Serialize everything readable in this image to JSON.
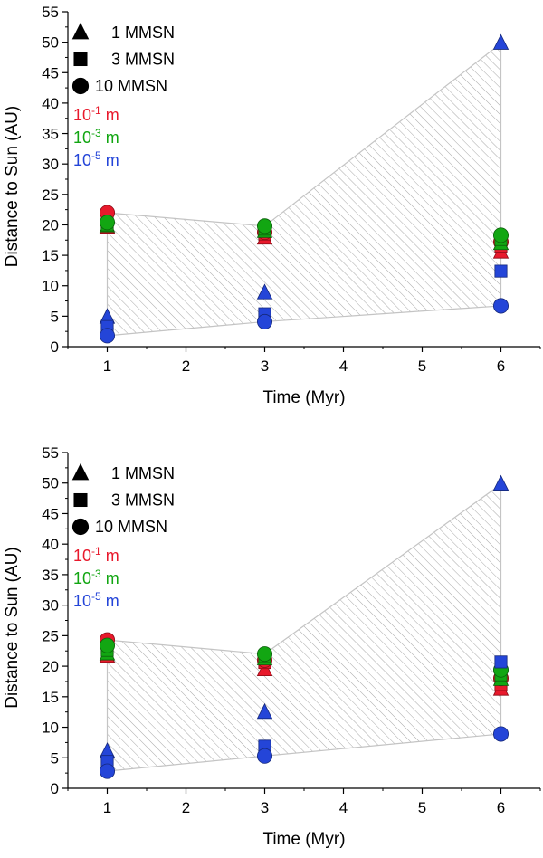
{
  "chart_data": [
    {
      "type": "scatter",
      "title": "",
      "xlabel": "Time (Myr)",
      "ylabel": "Distance to Sun (AU)",
      "xlim": [
        0.5,
        6.5
      ],
      "ylim": [
        0,
        55
      ],
      "xticks": [
        1,
        2,
        3,
        4,
        5,
        6
      ],
      "yticks": [
        0,
        5,
        10,
        15,
        20,
        25,
        30,
        35,
        40,
        45,
        50,
        55
      ],
      "legend_markers": [
        {
          "marker": "triangle",
          "label": "1 MMSN"
        },
        {
          "marker": "square",
          "label": "3 MMSN"
        },
        {
          "marker": "circle",
          "label": "10 MMSN"
        }
      ],
      "legend_colors": [
        {
          "color": "#e8192c",
          "base": "10",
          "exp": "-1",
          "unit": "m"
        },
        {
          "color": "#12a612",
          "base": "10",
          "exp": "-3",
          "unit": "m"
        },
        {
          "color": "#2445d8",
          "base": "10",
          "exp": "-5",
          "unit": "m"
        }
      ],
      "envelope": [
        [
          1,
          22.0
        ],
        [
          3,
          19.8
        ],
        [
          6,
          49.8
        ],
        [
          6,
          6.7
        ],
        [
          3,
          4.1
        ],
        [
          1,
          1.8
        ]
      ],
      "points": [
        {
          "x": 1,
          "y": 19.6,
          "marker": "triangle",
          "color": "#e8192c"
        },
        {
          "x": 1,
          "y": 20.2,
          "marker": "square",
          "color": "#e8192c"
        },
        {
          "x": 1,
          "y": 22.0,
          "marker": "circle",
          "color": "#e8192c"
        },
        {
          "x": 1,
          "y": 19.8,
          "marker": "triangle",
          "color": "#12a612"
        },
        {
          "x": 1,
          "y": 20.0,
          "marker": "square",
          "color": "#12a612"
        },
        {
          "x": 1,
          "y": 20.4,
          "marker": "circle",
          "color": "#12a612"
        },
        {
          "x": 1,
          "y": 4.8,
          "marker": "triangle",
          "color": "#2445d8"
        },
        {
          "x": 1,
          "y": 3.3,
          "marker": "square",
          "color": "#2445d8"
        },
        {
          "x": 1,
          "y": 1.8,
          "marker": "circle",
          "color": "#2445d8"
        },
        {
          "x": 3,
          "y": 17.8,
          "marker": "triangle",
          "color": "#e8192c"
        },
        {
          "x": 3,
          "y": 18.5,
          "marker": "square",
          "color": "#e8192c"
        },
        {
          "x": 3,
          "y": 18.8,
          "marker": "circle",
          "color": "#e8192c"
        },
        {
          "x": 3,
          "y": 18.9,
          "marker": "triangle",
          "color": "#12a612"
        },
        {
          "x": 3,
          "y": 19.3,
          "marker": "square",
          "color": "#12a612"
        },
        {
          "x": 3,
          "y": 19.8,
          "marker": "circle",
          "color": "#12a612"
        },
        {
          "x": 3,
          "y": 8.8,
          "marker": "triangle",
          "color": "#2445d8"
        },
        {
          "x": 3,
          "y": 5.4,
          "marker": "square",
          "color": "#2445d8"
        },
        {
          "x": 3,
          "y": 4.1,
          "marker": "circle",
          "color": "#2445d8"
        },
        {
          "x": 6,
          "y": 15.5,
          "marker": "triangle",
          "color": "#e8192c"
        },
        {
          "x": 6,
          "y": 16.5,
          "marker": "square",
          "color": "#e8192c"
        },
        {
          "x": 6,
          "y": 17.2,
          "marker": "circle",
          "color": "#e8192c"
        },
        {
          "x": 6,
          "y": 16.9,
          "marker": "triangle",
          "color": "#12a612"
        },
        {
          "x": 6,
          "y": 17.6,
          "marker": "square",
          "color": "#12a612"
        },
        {
          "x": 6,
          "y": 18.3,
          "marker": "circle",
          "color": "#12a612"
        },
        {
          "x": 6,
          "y": 49.8,
          "marker": "triangle",
          "color": "#2445d8"
        },
        {
          "x": 6,
          "y": 12.4,
          "marker": "square",
          "color": "#2445d8"
        },
        {
          "x": 6,
          "y": 6.7,
          "marker": "circle",
          "color": "#2445d8"
        }
      ]
    },
    {
      "type": "scatter",
      "title": "",
      "xlabel": "Time (Myr)",
      "ylabel": "Distance to Sun (AU)",
      "xlim": [
        0.5,
        6.5
      ],
      "ylim": [
        0,
        55
      ],
      "xticks": [
        1,
        2,
        3,
        4,
        5,
        6
      ],
      "yticks": [
        0,
        5,
        10,
        15,
        20,
        25,
        30,
        35,
        40,
        45,
        50,
        55
      ],
      "legend_markers": [
        {
          "marker": "triangle",
          "label": "1 MMSN"
        },
        {
          "marker": "square",
          "label": "3 MMSN"
        },
        {
          "marker": "circle",
          "label": "10 MMSN"
        }
      ],
      "legend_colors": [
        {
          "color": "#e8192c",
          "base": "10",
          "exp": "-1",
          "unit": "m"
        },
        {
          "color": "#12a612",
          "base": "10",
          "exp": "-3",
          "unit": "m"
        },
        {
          "color": "#2445d8",
          "base": "10",
          "exp": "-5",
          "unit": "m"
        }
      ],
      "envelope": [
        [
          1,
          24.3
        ],
        [
          3,
          22.0
        ],
        [
          6,
          49.8
        ],
        [
          6,
          8.9
        ],
        [
          3,
          5.3
        ],
        [
          1,
          2.8
        ]
      ],
      "points": [
        {
          "x": 1,
          "y": 21.6,
          "marker": "triangle",
          "color": "#e8192c"
        },
        {
          "x": 1,
          "y": 23.0,
          "marker": "square",
          "color": "#e8192c"
        },
        {
          "x": 1,
          "y": 24.3,
          "marker": "circle",
          "color": "#e8192c"
        },
        {
          "x": 1,
          "y": 22.0,
          "marker": "triangle",
          "color": "#12a612"
        },
        {
          "x": 1,
          "y": 22.6,
          "marker": "square",
          "color": "#12a612"
        },
        {
          "x": 1,
          "y": 23.4,
          "marker": "circle",
          "color": "#12a612"
        },
        {
          "x": 1,
          "y": 6.0,
          "marker": "triangle",
          "color": "#2445d8"
        },
        {
          "x": 1,
          "y": 4.4,
          "marker": "square",
          "color": "#2445d8"
        },
        {
          "x": 1,
          "y": 2.8,
          "marker": "circle",
          "color": "#2445d8"
        },
        {
          "x": 3,
          "y": 19.4,
          "marker": "triangle",
          "color": "#e8192c"
        },
        {
          "x": 3,
          "y": 20.6,
          "marker": "square",
          "color": "#e8192c"
        },
        {
          "x": 3,
          "y": 21.0,
          "marker": "circle",
          "color": "#e8192c"
        },
        {
          "x": 3,
          "y": 21.2,
          "marker": "triangle",
          "color": "#12a612"
        },
        {
          "x": 3,
          "y": 21.6,
          "marker": "square",
          "color": "#12a612"
        },
        {
          "x": 3,
          "y": 22.0,
          "marker": "circle",
          "color": "#12a612"
        },
        {
          "x": 3,
          "y": 12.4,
          "marker": "triangle",
          "color": "#2445d8"
        },
        {
          "x": 3,
          "y": 6.9,
          "marker": "square",
          "color": "#2445d8"
        },
        {
          "x": 3,
          "y": 5.3,
          "marker": "circle",
          "color": "#2445d8"
        },
        {
          "x": 6,
          "y": 16.2,
          "marker": "triangle",
          "color": "#e8192c"
        },
        {
          "x": 6,
          "y": 17.0,
          "marker": "square",
          "color": "#e8192c"
        },
        {
          "x": 6,
          "y": 18.0,
          "marker": "circle",
          "color": "#e8192c"
        },
        {
          "x": 6,
          "y": 17.8,
          "marker": "triangle",
          "color": "#12a612"
        },
        {
          "x": 6,
          "y": 18.6,
          "marker": "square",
          "color": "#12a612"
        },
        {
          "x": 6,
          "y": 19.4,
          "marker": "circle",
          "color": "#12a612"
        },
        {
          "x": 6,
          "y": 49.8,
          "marker": "triangle",
          "color": "#2445d8"
        },
        {
          "x": 6,
          "y": 20.7,
          "marker": "square",
          "color": "#2445d8"
        },
        {
          "x": 6,
          "y": 8.9,
          "marker": "circle",
          "color": "#2445d8"
        }
      ]
    }
  ]
}
